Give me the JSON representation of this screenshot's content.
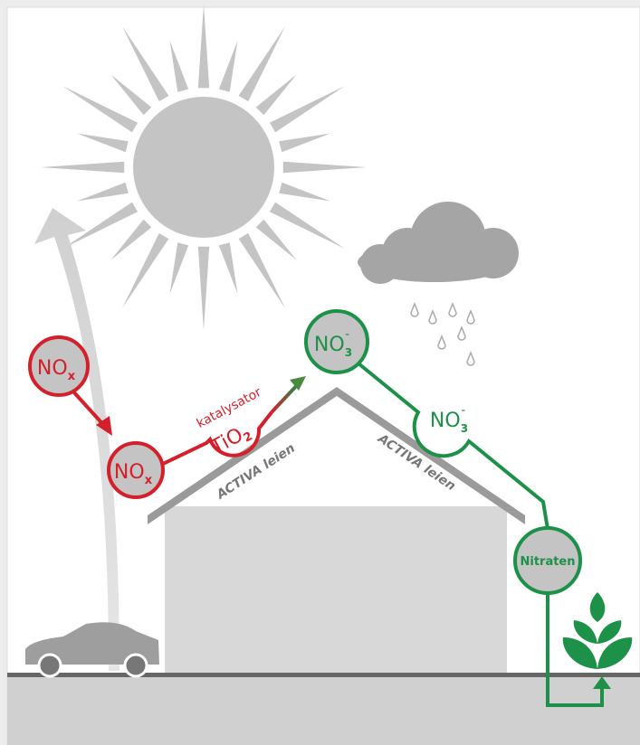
{
  "nodes": [
    {
      "label": "NO",
      "sub": "x"
    },
    {
      "label": "NO",
      "sub": "x"
    },
    {
      "label": "NO",
      "sub": "3",
      "sup": "-"
    },
    {
      "label": "NO",
      "sub": "3",
      "sup": "-"
    },
    {
      "label": "Nitraten"
    }
  ],
  "catalyst": {
    "label": "katalysator",
    "formula": "TiO",
    "sub": "2"
  },
  "roof_labels": [
    "ACTIVA leien",
    "ACTIVA leien"
  ]
}
